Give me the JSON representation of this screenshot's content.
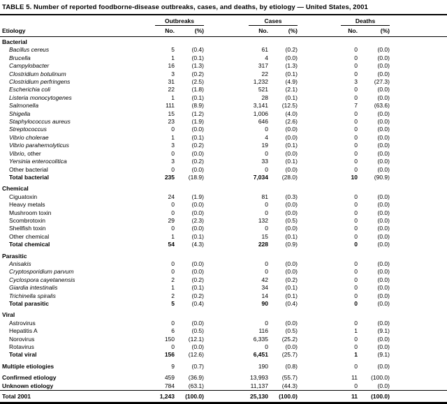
{
  "title": "TABLE 5. Number of reported foodborne-disease outbreaks, cases, and deaths, by etiology — United States, 2001",
  "header": {
    "etiology_label": "Etiology",
    "groups": [
      {
        "label": "Outbreaks"
      },
      {
        "label": "Cases"
      },
      {
        "label": "Deaths"
      }
    ],
    "sub_columns": {
      "no": "No.",
      "pct": "(%)"
    }
  },
  "sections": [
    {
      "header": "Bacterial",
      "rows": [
        {
          "label": "Bacillus cereus",
          "italic": true,
          "values": [
            "5",
            "(0.4)",
            "61",
            "(0.2)",
            "0",
            "(0.0)"
          ]
        },
        {
          "label": "Brucella",
          "italic": true,
          "values": [
            "1",
            "(0.1)",
            "4",
            "(0.0)",
            "0",
            "(0.0)"
          ]
        },
        {
          "label": "Campylobacter",
          "italic": true,
          "values": [
            "16",
            "(1.3)",
            "317",
            "(1.3)",
            "0",
            "(0.0)"
          ]
        },
        {
          "label": "Clostridium botulinum",
          "italic": true,
          "values": [
            "3",
            "(0.2)",
            "22",
            "(0.1)",
            "0",
            "(0.0)"
          ]
        },
        {
          "label": "Clostridium perfringens",
          "italic": true,
          "values": [
            "31",
            "(2.5)",
            "1,232",
            "(4.9)",
            "3",
            "(27.3)"
          ]
        },
        {
          "label": "Escherichia coli",
          "italic": true,
          "values": [
            "22",
            "(1.8)",
            "521",
            "(2.1)",
            "0",
            "(0.0)"
          ]
        },
        {
          "label": "Listeria monocytogenes",
          "italic": true,
          "values": [
            "1",
            "(0.1)",
            "28",
            "(0.1)",
            "0",
            "(0.0)"
          ]
        },
        {
          "label": "Salmonella",
          "italic": true,
          "values": [
            "111",
            "(8.9)",
            "3,141",
            "(12.5)",
            "7",
            "(63.6)"
          ]
        },
        {
          "label": "Shigella",
          "italic": true,
          "values": [
            "15",
            "(1.2)",
            "1,006",
            "(4.0)",
            "0",
            "(0.0)"
          ]
        },
        {
          "label": "Staphylococcus aureus",
          "italic": true,
          "values": [
            "23",
            "(1.9)",
            "646",
            "(2.6)",
            "0",
            "(0.0)"
          ]
        },
        {
          "label": "Streptococcus",
          "italic": true,
          "values": [
            "0",
            "(0.0)",
            "0",
            "(0.0)",
            "0",
            "(0.0)"
          ]
        },
        {
          "label": "Vibrio cholerae",
          "italic": true,
          "values": [
            "1",
            "(0.1)",
            "4",
            "(0.0)",
            "0",
            "(0.0)"
          ]
        },
        {
          "label": "Vibrio parahemolyticus",
          "italic": true,
          "values": [
            "3",
            "(0.2)",
            "19",
            "(0.1)",
            "0",
            "(0.0)"
          ]
        },
        {
          "label": "Vibrio",
          "suffix": ", other",
          "italic": true,
          "values": [
            "0",
            "(0.0)",
            "0",
            "(0.0)",
            "0",
            "(0.0)"
          ]
        },
        {
          "label": "Yersinia enterocolitica",
          "italic": true,
          "values": [
            "3",
            "(0.2)",
            "33",
            "(0.1)",
            "0",
            "(0.0)"
          ]
        },
        {
          "label": "Other bacterial",
          "italic": false,
          "values": [
            "0",
            "(0.0)",
            "0",
            "(0.0)",
            "0",
            "(0.0)"
          ]
        },
        {
          "label": "Total bacterial",
          "italic": false,
          "total": true,
          "values": [
            "235",
            "(18.9)",
            "7,034",
            "(28.0)",
            "10",
            "(90.9)"
          ]
        }
      ]
    },
    {
      "header": "Chemical",
      "rows": [
        {
          "label": "Ciguatoxin",
          "italic": false,
          "values": [
            "24",
            "(1.9)",
            "81",
            "(0.3)",
            "0",
            "(0.0)"
          ]
        },
        {
          "label": "Heavy metals",
          "italic": false,
          "values": [
            "0",
            "(0.0)",
            "0",
            "(0.0)",
            "0",
            "(0.0)"
          ]
        },
        {
          "label": "Mushroom toxin",
          "italic": false,
          "values": [
            "0",
            "(0.0)",
            "0",
            "(0.0)",
            "0",
            "(0.0)"
          ]
        },
        {
          "label": "Scombrotoxin",
          "italic": false,
          "values": [
            "29",
            "(2.3)",
            "132",
            "(0.5)",
            "0",
            "(0.0)"
          ]
        },
        {
          "label": "Shellfish toxin",
          "italic": false,
          "values": [
            "0",
            "(0.0)",
            "0",
            "(0.0)",
            "0",
            "(0.0)"
          ]
        },
        {
          "label": "Other chemical",
          "italic": false,
          "values": [
            "1",
            "(0.1)",
            "15",
            "(0.1)",
            "0",
            "(0.0)"
          ]
        },
        {
          "label": "Total chemical",
          "italic": false,
          "total": true,
          "values": [
            "54",
            "(4.3)",
            "228",
            "(0.9)",
            "0",
            "(0.0)"
          ]
        }
      ]
    },
    {
      "header": "Parasitic",
      "rows": [
        {
          "label": "Anisakis",
          "italic": true,
          "values": [
            "0",
            "(0.0)",
            "0",
            "(0.0)",
            "0",
            "(0.0)"
          ]
        },
        {
          "label": "Cryptosporidium parvum",
          "italic": true,
          "values": [
            "0",
            "(0.0)",
            "0",
            "(0.0)",
            "0",
            "(0.0)"
          ]
        },
        {
          "label": "Cyclospora cayetanensis",
          "italic": true,
          "values": [
            "2",
            "(0.2)",
            "42",
            "(0.2)",
            "0",
            "(0.0)"
          ]
        },
        {
          "label": "Giardia intestinalis",
          "italic": true,
          "values": [
            "1",
            "(0.1)",
            "34",
            "(0.1)",
            "0",
            "(0.0)"
          ]
        },
        {
          "label": "Trichinella spiralis",
          "italic": true,
          "values": [
            "2",
            "(0.2)",
            "14",
            "(0.1)",
            "0",
            "(0.0)"
          ]
        },
        {
          "label": "Total parasitic",
          "italic": false,
          "total": true,
          "values": [
            "5",
            "(0.4)",
            "90",
            "(0.4)",
            "0",
            "(0.0)"
          ]
        }
      ]
    },
    {
      "header": "Viral",
      "rows": [
        {
          "label": "Astrovirus",
          "italic": false,
          "values": [
            "0",
            "(0.0)",
            "0",
            "(0.0)",
            "0",
            "(0.0)"
          ]
        },
        {
          "label": "Hepatitis A",
          "italic": false,
          "values": [
            "6",
            "(0.5)",
            "116",
            "(0.5)",
            "1",
            "(9.1)"
          ]
        },
        {
          "label": "Norovirus",
          "italic": false,
          "values": [
            "150",
            "(12.1)",
            "6,335",
            "(25.2)",
            "0",
            "(0.0)"
          ]
        },
        {
          "label": "Rotavirus",
          "italic": false,
          "values": [
            "0",
            "(0.0)",
            "0",
            "(0.0)",
            "0",
            "(0.0)"
          ]
        },
        {
          "label": "Total viral",
          "italic": false,
          "total": true,
          "values": [
            "156",
            "(12.6)",
            "6,451",
            "(25.7)",
            "1",
            "(9.1)"
          ]
        }
      ]
    }
  ],
  "summary_rows": [
    {
      "label": "Multiple etiologies",
      "gap": true,
      "values": [
        "9",
        "(0.7)",
        "190",
        "(0.8)",
        "0",
        "(0.0)"
      ]
    },
    {
      "label": "Confirmed etiology",
      "gap": true,
      "values": [
        "459",
        "(36.9)",
        "13,993",
        "(55.7)",
        "11",
        "(100.0)"
      ]
    },
    {
      "label": "Unknown etiology",
      "gap": false,
      "values": [
        "784",
        "(63.1)",
        "11,137",
        "(44.3)",
        "0",
        "(0.0)"
      ]
    }
  ],
  "grand_total": {
    "label": "Total 2001",
    "values": [
      "1,243",
      "(100.0)",
      "25,130",
      "(100.0)",
      "11",
      "(100.0)"
    ]
  }
}
